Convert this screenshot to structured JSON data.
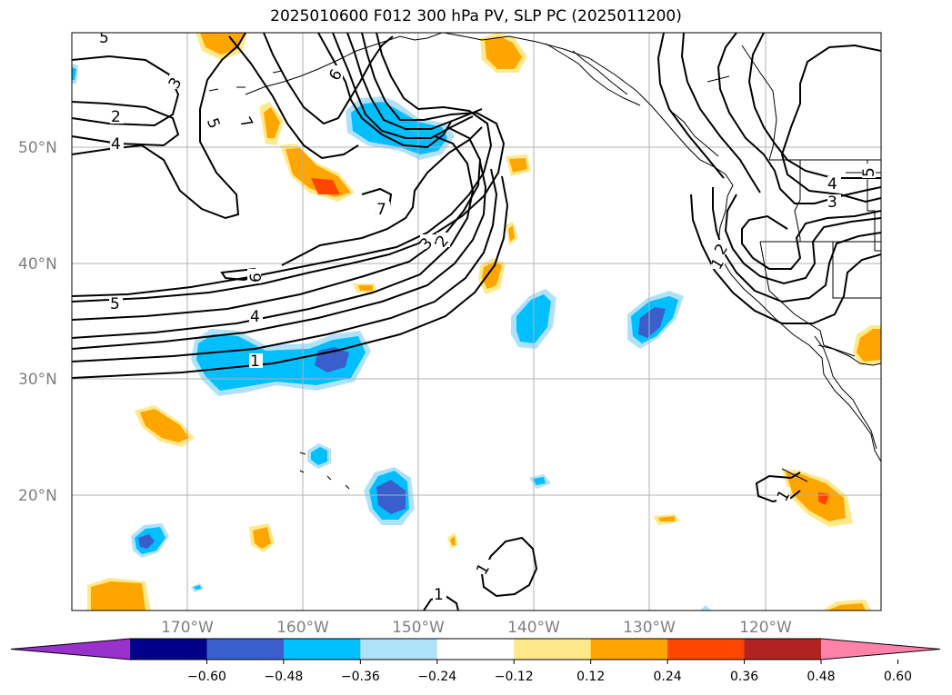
{
  "title": "2025010600 F012 300 hPa PV, SLP PC (2025011200)",
  "lat_labels": [
    "50°N",
    "40°N",
    "30°N",
    "20°N"
  ],
  "lon_labels": [
    "170°W",
    "160°W",
    "150°W",
    "140°W",
    "130°W",
    "120°W"
  ],
  "colorbar": {
    "ticks": [
      "−0.60",
      "−0.48",
      "−0.36",
      "−0.24",
      "−0.12",
      "0.12",
      "0.24",
      "0.36",
      "0.48",
      "0.60"
    ],
    "colors": [
      "#9932cc",
      "#00008b",
      "#3a5fcd",
      "#00bfff",
      "#afe1fa",
      "#ffffff",
      "#ffe98a",
      "#ffa500",
      "#ff4500",
      "#b22222",
      "#ff82ab"
    ]
  },
  "contour_labels": [
    "5",
    "3",
    "2",
    "4",
    "5",
    "7",
    "6",
    "7",
    "3",
    "2",
    "6",
    "5",
    "4",
    "1",
    "4",
    "3",
    "5",
    "2",
    "1",
    "1",
    "1",
    "1"
  ]
}
